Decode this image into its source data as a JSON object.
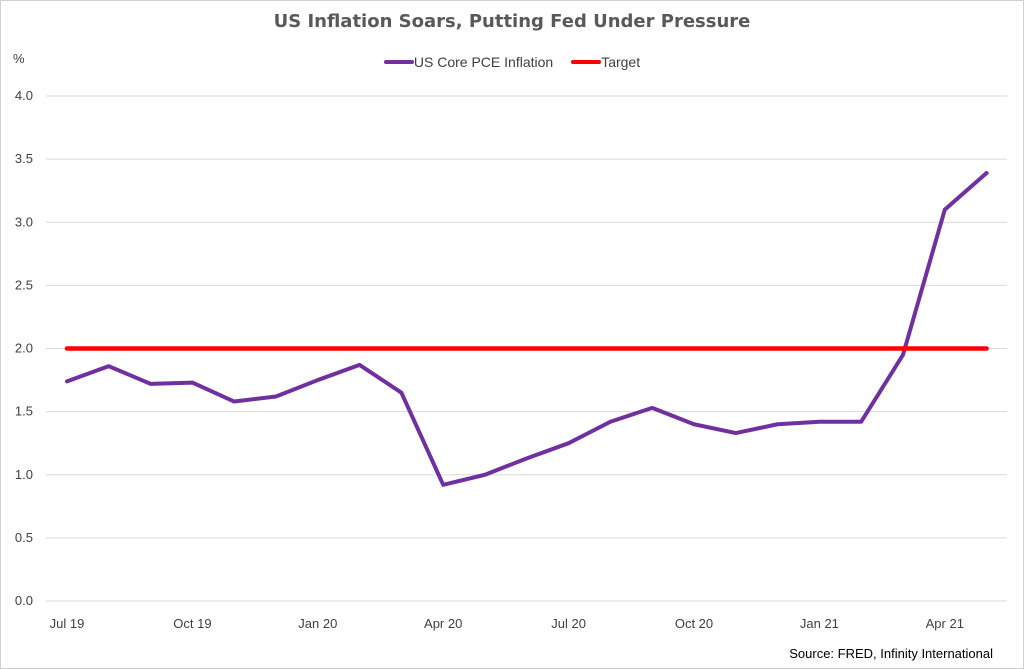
{
  "chart_data": {
    "type": "line",
    "title": "US Inflation Soars, Putting Fed Under Pressure",
    "ylabel": "%",
    "xlabel": "",
    "ylim": [
      0,
      4
    ],
    "yticks": [
      "0.0",
      "0.5",
      "1.0",
      "1.5",
      "2.0",
      "2.5",
      "3.0",
      "3.5",
      "4.0"
    ],
    "x": [
      "Jul 19",
      "Aug 19",
      "Sep 19",
      "Oct 19",
      "Nov 19",
      "Dec 19",
      "Jan 20",
      "Feb 20",
      "Mar 20",
      "Apr 20",
      "May 20",
      "Jun 20",
      "Jul 20",
      "Aug 20",
      "Sep 20",
      "Oct 20",
      "Nov 20",
      "Dec 20",
      "Jan 21",
      "Feb 21",
      "Mar 21",
      "Apr 21",
      "May 21"
    ],
    "xtick_labels": [
      "Jul 19",
      "Oct 19",
      "Jan 20",
      "Apr 20",
      "Jul 20",
      "Oct 20",
      "Jan 21",
      "Apr 21"
    ],
    "series": [
      {
        "name": "US Core PCE Inflation",
        "color": "#7030a0",
        "values": [
          1.74,
          1.86,
          1.72,
          1.73,
          1.58,
          1.62,
          1.75,
          1.87,
          1.65,
          0.92,
          1.0,
          1.13,
          1.25,
          1.42,
          1.53,
          1.4,
          1.33,
          1.4,
          1.42,
          1.42,
          1.95,
          3.1,
          3.39
        ]
      },
      {
        "name": "Target",
        "color": "#ff0000",
        "values": [
          2.0,
          2.0,
          2.0,
          2.0,
          2.0,
          2.0,
          2.0,
          2.0,
          2.0,
          2.0,
          2.0,
          2.0,
          2.0,
          2.0,
          2.0,
          2.0,
          2.0,
          2.0,
          2.0,
          2.0,
          2.0,
          2.0,
          2.0
        ]
      }
    ],
    "grid": true,
    "legend_position": "top"
  },
  "source": "Source: FRED, Infinity International"
}
